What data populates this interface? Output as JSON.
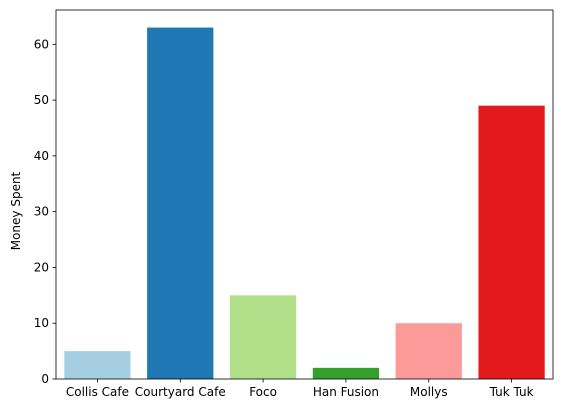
{
  "chart_data": {
    "type": "bar",
    "categories": [
      "Collis Cafe",
      "Courtyard Cafe",
      "Foco",
      "Han Fusion",
      "Mollys",
      "Tuk Tuk"
    ],
    "values": [
      5,
      63,
      15,
      2,
      10,
      49
    ],
    "colors": [
      "#a6cee3",
      "#1f78b4",
      "#b2df8a",
      "#33a02c",
      "#fb9a99",
      "#e31a1c"
    ],
    "xlabel": "",
    "ylabel": "Money Spent",
    "ylim": [
      0,
      66.15
    ],
    "yticks": [
      0,
      10,
      20,
      30,
      40,
      50,
      60
    ],
    "grid": false
  }
}
